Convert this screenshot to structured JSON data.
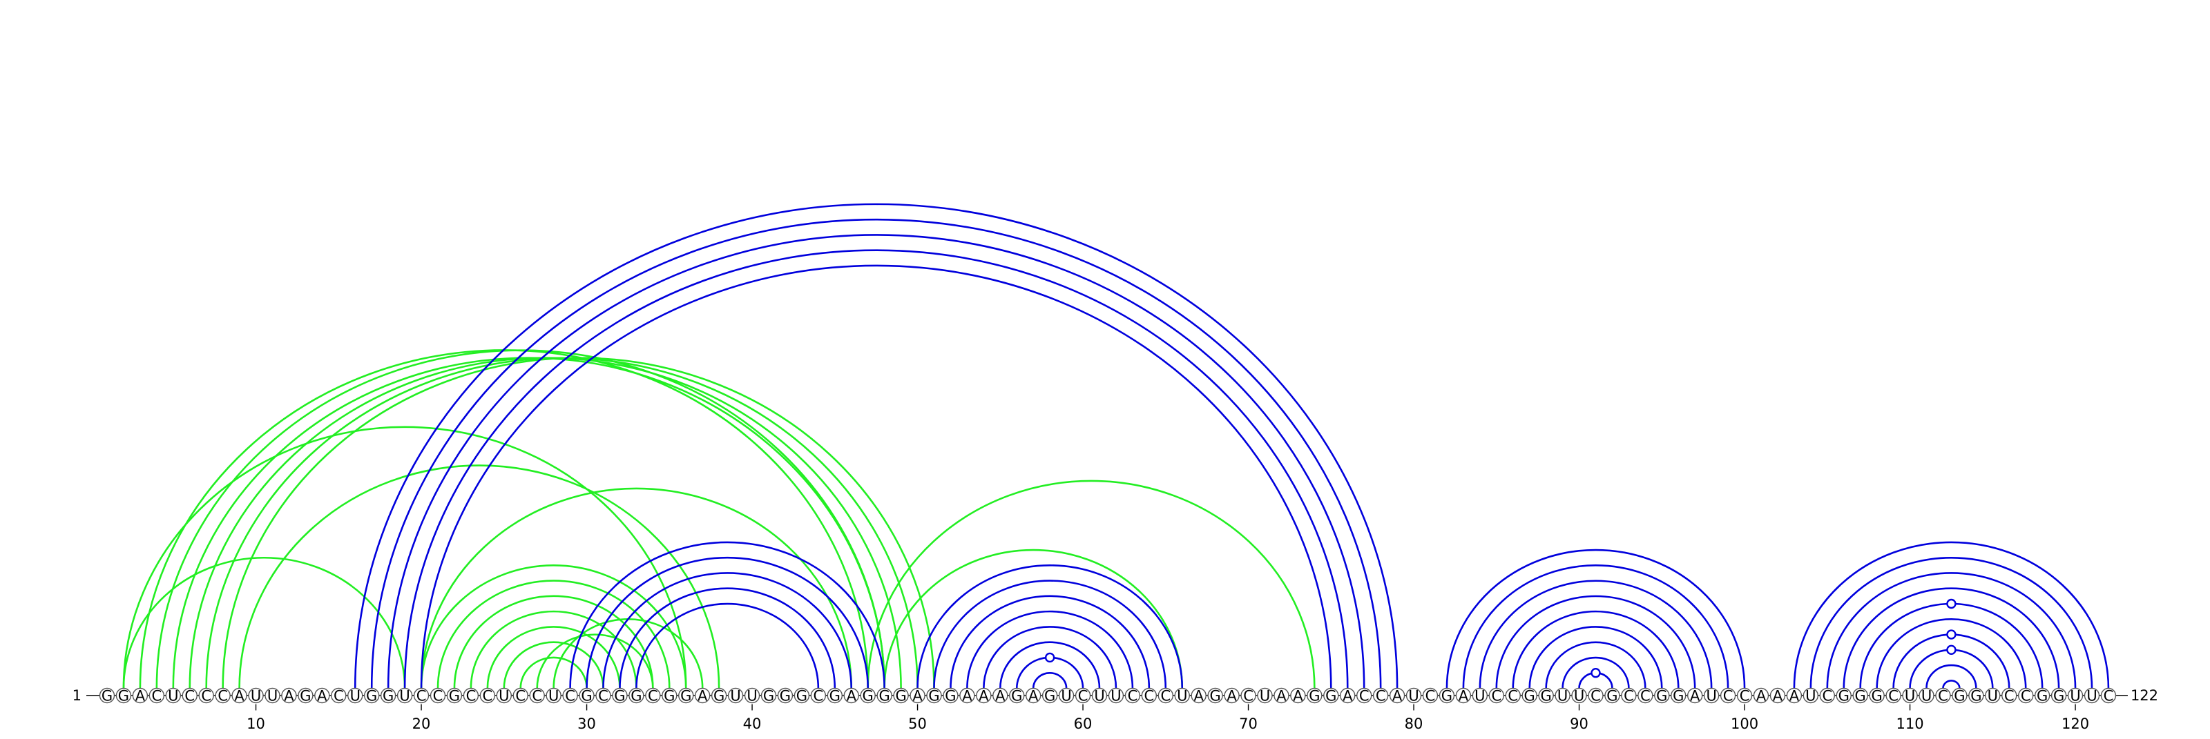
{
  "sequence": "GGACUCCCAUUAGACUGGUCCGCCUCCUCGCGGCGGAGUUGGGCGAGGGAGGAAAGAGUCUUCCCUAGACUAAGGACCAUCGAUCCGGUUCGCCGGAUCCAAAUCGGGCUUCGGUCCGGUUC",
  "start_label": "1",
  "end_label": "122",
  "ticks": [
    "10",
    "20",
    "30",
    "40",
    "50",
    "60",
    "70",
    "80",
    "90",
    "100",
    "110",
    "120"
  ],
  "colors": {
    "blue": "#0000dd",
    "green": "#22ee22",
    "nucleotide_stroke": "#555555",
    "nucleotide_fill": "#ffffff"
  },
  "pairs_blue": [
    [
      16,
      79
    ],
    [
      17,
      78
    ],
    [
      18,
      77
    ],
    [
      19,
      76
    ],
    [
      20,
      75
    ],
    [
      29,
      48
    ],
    [
      30,
      47
    ],
    [
      31,
      46
    ],
    [
      32,
      45
    ],
    [
      33,
      44
    ],
    [
      50,
      66
    ],
    [
      51,
      65
    ],
    [
      52,
      64
    ],
    [
      53,
      63
    ],
    [
      54,
      62
    ],
    [
      55,
      61
    ],
    [
      56,
      60
    ],
    [
      57,
      59
    ],
    [
      82,
      100
    ],
    [
      83,
      99
    ],
    [
      84,
      98
    ],
    [
      85,
      97
    ],
    [
      86,
      96
    ],
    [
      87,
      95
    ],
    [
      88,
      94
    ],
    [
      89,
      93
    ],
    [
      90,
      92
    ],
    [
      103,
      122
    ],
    [
      104,
      121
    ],
    [
      105,
      120
    ],
    [
      106,
      119
    ],
    [
      107,
      118
    ],
    [
      108,
      117
    ],
    [
      109,
      116
    ],
    [
      110,
      115
    ],
    [
      111,
      114
    ],
    [
      112,
      113
    ]
  ],
  "pairs_green": [
    [
      2,
      19
    ],
    [
      2,
      36
    ],
    [
      3,
      47
    ],
    [
      4,
      48
    ],
    [
      5,
      48
    ],
    [
      6,
      49
    ],
    [
      7,
      50
    ],
    [
      8,
      51
    ],
    [
      9,
      38
    ],
    [
      20,
      46
    ],
    [
      20,
      36
    ],
    [
      21,
      35
    ],
    [
      22,
      34
    ],
    [
      23,
      33
    ],
    [
      24,
      32
    ],
    [
      25,
      31
    ],
    [
      26,
      30
    ],
    [
      27,
      34
    ],
    [
      28,
      37
    ],
    [
      48,
      66
    ],
    [
      47,
      74
    ]
  ],
  "unpaired_loop_markers": [
    {
      "color": "blue",
      "after": 56,
      "before": 60,
      "height_factor": 1.0
    },
    {
      "color": "blue",
      "after": 90,
      "before": 92,
      "height_factor": 1.0
    },
    {
      "color": "blue",
      "after": 110,
      "before": 115,
      "height_factor": 1.0
    },
    {
      "color": "blue",
      "after": 109,
      "before": 116,
      "height_factor": 1.0
    },
    {
      "color": "blue",
      "after": 107,
      "before": 118,
      "height_factor": 1.0
    }
  ]
}
